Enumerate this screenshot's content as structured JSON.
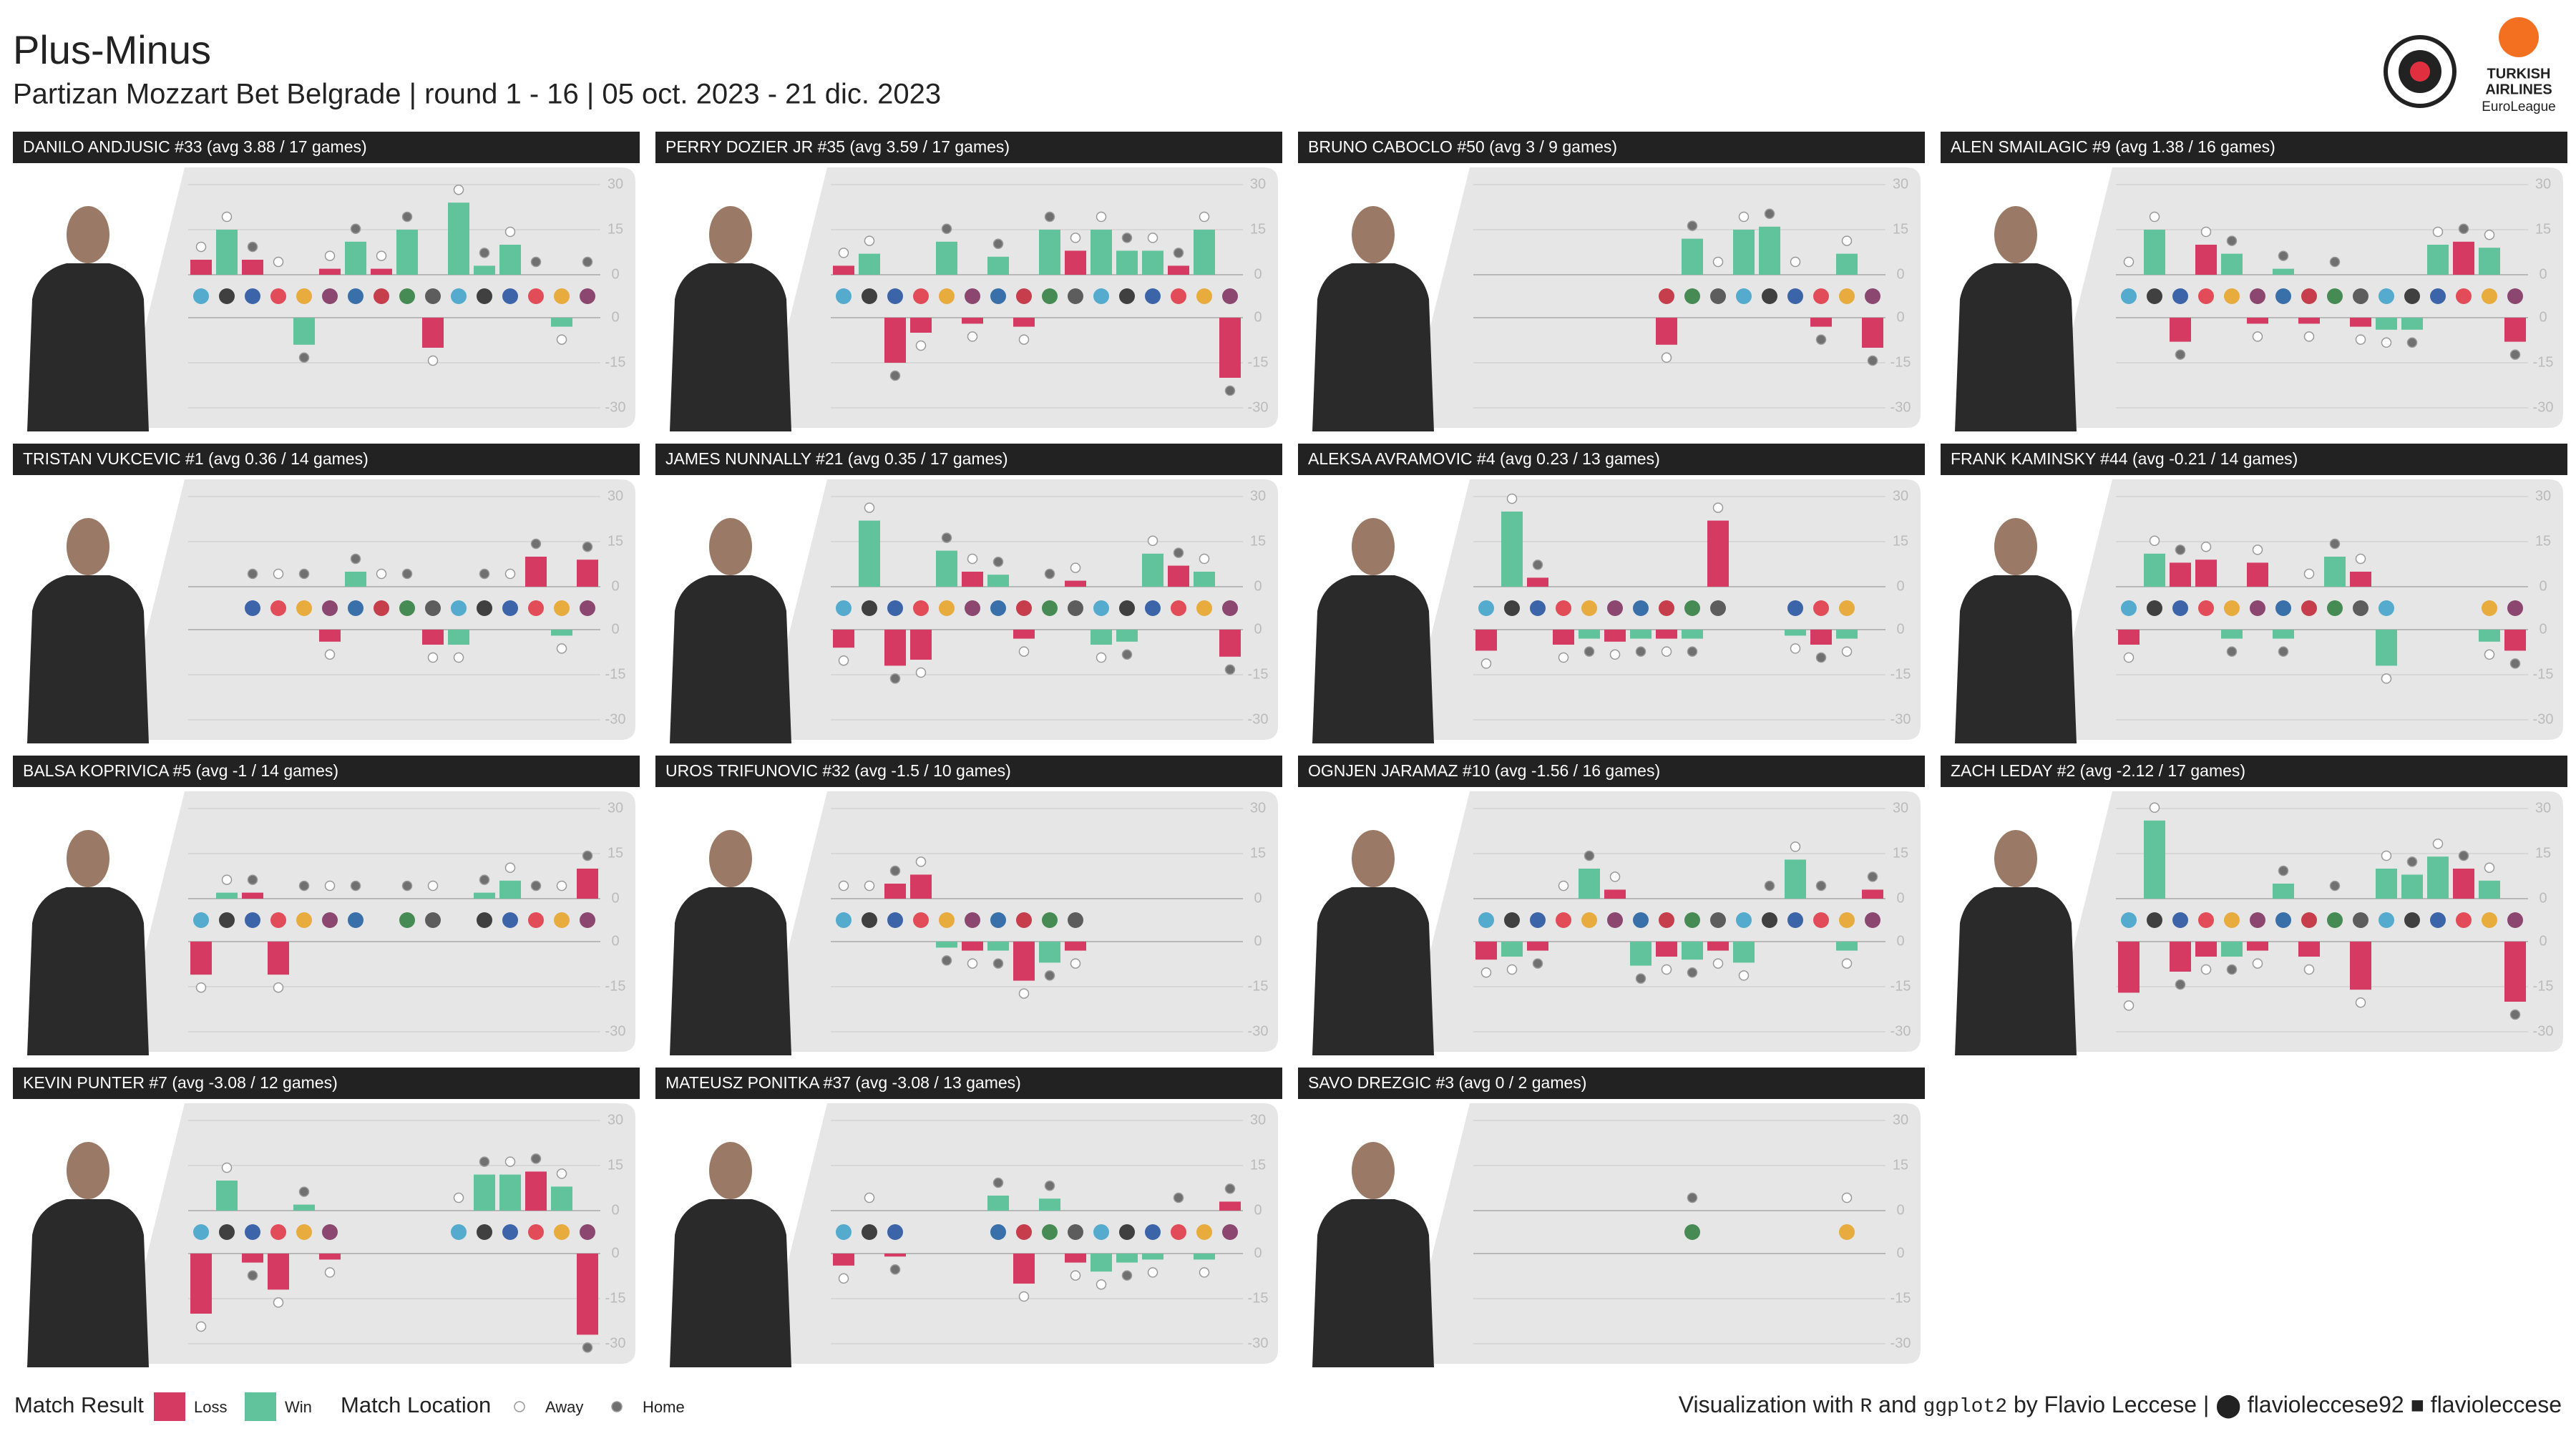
{
  "title": "Plus-Minus",
  "subtitle": "Partizan Mozzart Bet Belgrade | round 1 - 16 | 05 oct. 2023 - 21 dic. 2023",
  "league_logo": [
    "TURKISH",
    "AIRLINES",
    "EuroLeague"
  ],
  "games": {
    "results": [
      "Loss",
      "Win",
      "Loss",
      "Loss",
      "Win",
      "Loss",
      "Win",
      "Loss",
      "Win",
      "Loss",
      "Win",
      "Win",
      "Win",
      "Loss",
      "Win",
      "Loss"
    ],
    "locations": [
      "Away",
      "Away",
      "Home",
      "Away",
      "Home",
      "Away",
      "Home",
      "Away",
      "Home",
      "Away",
      "Away",
      "Home",
      "Away",
      "Home",
      "Away",
      "Home"
    ]
  },
  "legend": {
    "result_title": "Match Result",
    "results": [
      {
        "name": "Loss",
        "color": "#d43a62"
      },
      {
        "name": "Win",
        "color": "#60c39c"
      }
    ],
    "location_title": "Match Location",
    "locations": [
      {
        "name": "Away",
        "color": "#ffffff"
      },
      {
        "name": "Home",
        "color": "#707070"
      }
    ]
  },
  "chart_data": [
    {
      "type": "bar",
      "title": "DANILO ANDJUSIC #33 (avg 3.88 / 17 games)",
      "values": [
        5,
        15,
        5,
        0,
        -9,
        2,
        11,
        2,
        15,
        -10,
        24,
        3,
        10,
        0,
        -3,
        0
      ],
      "ylim": [
        -30,
        30
      ],
      "yticks": [
        -30,
        -15,
        0,
        15,
        30
      ]
    },
    {
      "type": "bar",
      "title": "PERRY DOZIER JR #35 (avg 3.59 / 17 games)",
      "values": [
        3,
        7,
        -15,
        -5,
        11,
        -2,
        6,
        -3,
        15,
        8,
        15,
        8,
        8,
        3,
        15,
        -20
      ],
      "ylim": [
        -30,
        30
      ],
      "yticks": [
        -30,
        -15,
        0,
        15,
        30
      ]
    },
    {
      "type": "bar",
      "title": "BRUNO CABOCLO #50 (avg 3 / 9 games)",
      "values": [
        null,
        null,
        null,
        null,
        null,
        null,
        null,
        -9,
        12,
        0,
        15,
        16,
        0,
        -3,
        7,
        -10
      ],
      "ylim": [
        -30,
        30
      ],
      "yticks": [
        -30,
        -15,
        0,
        15,
        30
      ]
    },
    {
      "type": "bar",
      "title": "ALEN SMAILAGIC #9 (avg 1.38 / 16 games)",
      "values": [
        0,
        15,
        -8,
        10,
        7,
        -2,
        2,
        -2,
        0,
        -3,
        -4,
        -4,
        10,
        11,
        9,
        -8
      ],
      "ylim": [
        -30,
        30
      ],
      "yticks": [
        -30,
        -15,
        0,
        15,
        30
      ]
    },
    {
      "type": "bar",
      "title": "TRISTAN VUKCEVIC #1 (avg 0.36 / 14 games)",
      "values": [
        null,
        null,
        0,
        0,
        0,
        -4,
        5,
        0,
        0,
        -5,
        -5,
        0,
        0,
        10,
        -2,
        9
      ],
      "ylim": [
        -30,
        30
      ],
      "yticks": [
        -30,
        -15,
        0,
        15,
        30
      ]
    },
    {
      "type": "bar",
      "title": "JAMES NUNNALLY #21 (avg 0.35 / 17 games)",
      "values": [
        -6,
        22,
        -12,
        -10,
        12,
        5,
        4,
        -3,
        0,
        2,
        -5,
        -4,
        11,
        7,
        5,
        -9
      ],
      "ylim": [
        -30,
        30
      ],
      "yticks": [
        -30,
        -15,
        0,
        15,
        30
      ]
    },
    {
      "type": "bar",
      "title": "ALEKSA AVRAMOVIC #4 (avg 0.23 / 13 games)",
      "values": [
        -7,
        25,
        3,
        -5,
        -3,
        -4,
        -3,
        -3,
        -3,
        22,
        null,
        null,
        -2,
        -5,
        -3,
        null
      ],
      "ylim": [
        -30,
        30
      ],
      "yticks": [
        -30,
        -15,
        0,
        15,
        30
      ]
    },
    {
      "type": "bar",
      "title": "FRANK KAMINSKY #44 (avg -0.21 / 14 games)",
      "values": [
        -5,
        11,
        8,
        9,
        -3,
        8,
        -3,
        0,
        10,
        5,
        -12,
        null,
        null,
        null,
        -4,
        -7
      ],
      "ylim": [
        -30,
        30
      ],
      "yticks": [
        -30,
        -15,
        0,
        15,
        30
      ]
    },
    {
      "type": "bar",
      "title": "BALSA KOPRIVICA #5 (avg -1 / 14 games)",
      "values": [
        -11,
        2,
        2,
        -11,
        0,
        0,
        0,
        null,
        0,
        0,
        null,
        2,
        6,
        0,
        0,
        10
      ],
      "ylim": [
        -30,
        30
      ],
      "yticks": [
        -30,
        -15,
        0,
        15,
        30
      ]
    },
    {
      "type": "bar",
      "title": "UROS TRIFUNOVIC #32 (avg -1.5 / 10 games)",
      "values": [
        0,
        0,
        5,
        8,
        -2,
        -3,
        -3,
        -13,
        -7,
        -3,
        null,
        null,
        null,
        null,
        null,
        null
      ],
      "ylim": [
        -30,
        30
      ],
      "yticks": [
        -30,
        -15,
        0,
        15,
        30
      ]
    },
    {
      "type": "bar",
      "title": "OGNJEN JARAMAZ #10 (avg -1.56 / 16 games)",
      "values": [
        -6,
        -5,
        -3,
        0,
        10,
        3,
        -8,
        -5,
        -6,
        -3,
        -7,
        0,
        13,
        0,
        -3,
        3
      ],
      "ylim": [
        -30,
        30
      ],
      "yticks": [
        -30,
        -15,
        0,
        15,
        30
      ]
    },
    {
      "type": "bar",
      "title": "ZACH LEDAY #2 (avg -2.12 / 17 games)",
      "values": [
        -17,
        26,
        -10,
        -5,
        -5,
        -3,
        5,
        -5,
        0,
        -16,
        10,
        8,
        14,
        10,
        6,
        -20
      ],
      "ylim": [
        -30,
        30
      ],
      "yticks": [
        -30,
        -15,
        0,
        15,
        30
      ]
    },
    {
      "type": "bar",
      "title": "KEVIN PUNTER #7 (avg -3.08 / 12 games)",
      "values": [
        -20,
        10,
        -3,
        -12,
        2,
        -2,
        null,
        null,
        null,
        null,
        0,
        12,
        12,
        13,
        8,
        -27
      ],
      "ylim": [
        -30,
        30
      ],
      "yticks": [
        -30,
        -15,
        0,
        15,
        30
      ]
    },
    {
      "type": "bar",
      "title": "MATEUSZ PONITKA #37 (avg -3.08 / 13 games)",
      "values": [
        -4,
        0,
        -1,
        null,
        null,
        null,
        5,
        -10,
        4,
        -3,
        -6,
        -3,
        -2,
        0,
        -2,
        3
      ],
      "ylim": [
        -30,
        30
      ],
      "yticks": [
        -30,
        -15,
        0,
        15,
        30
      ]
    },
    {
      "type": "bar",
      "title": "SAVO DREZGIC #3 (avg 0 / 2 games)",
      "values": [
        null,
        null,
        null,
        null,
        null,
        null,
        null,
        null,
        0,
        null,
        null,
        null,
        null,
        null,
        0,
        null
      ],
      "ylim": [
        -30,
        30
      ],
      "yticks": [
        -30,
        -15,
        0,
        15,
        30
      ]
    }
  ],
  "caption": {
    "lead": "Visualization with",
    "lang": "R",
    "and": "and",
    "pkg": "ggplot2",
    "by": "by Flavio Leccese |",
    "github": "flavioleccese92",
    "linkedin": "flavioleccese"
  }
}
